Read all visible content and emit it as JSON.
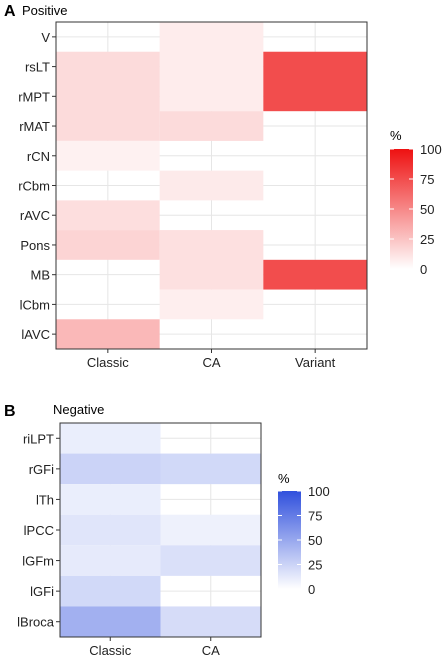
{
  "panels": [
    {
      "panel_label": "A",
      "chart_data": {
        "type": "heatmap",
        "title": "Positive",
        "xlabel": "",
        "ylabel": "",
        "categories": [
          "Classic",
          "CA",
          "Variant"
        ],
        "rows": [
          "V",
          "rsLT",
          "rMPT",
          "rMAT",
          "rCN",
          "rCbm",
          "rAVC",
          "Pons",
          "MB",
          "lCbm",
          "lAVC"
        ],
        "cells": [
          {
            "x": "CA",
            "y_from": "V",
            "y_to": "rMPT",
            "value": 8
          },
          {
            "x": "Classic",
            "y_from": "rsLT",
            "y_to": "rMAT",
            "value": 15
          },
          {
            "x": "CA",
            "y_from": "rMAT",
            "y_to": "rMAT",
            "value": 15
          },
          {
            "x": "Variant",
            "y_from": "rsLT",
            "y_to": "rMPT",
            "value": 75
          },
          {
            "x": "Classic",
            "y_from": "rCN",
            "y_to": "rCN",
            "value": 6
          },
          {
            "x": "CA",
            "y_from": "rCbm",
            "y_to": "rCbm",
            "value": 9
          },
          {
            "x": "Classic",
            "y_from": "rAVC",
            "y_to": "rAVC",
            "value": 14
          },
          {
            "x": "Classic",
            "y_from": "Pons",
            "y_to": "Pons",
            "value": 18
          },
          {
            "x": "CA",
            "y_from": "Pons",
            "y_to": "MB",
            "value": 13
          },
          {
            "x": "Variant",
            "y_from": "MB",
            "y_to": "MB",
            "value": 75
          },
          {
            "x": "CA",
            "y_from": "lCbm",
            "y_to": "lCbm",
            "value": 7
          },
          {
            "x": "Classic",
            "y_from": "lAVC",
            "y_to": "lAVC",
            "value": 30
          }
        ],
        "legend": {
          "title": "%",
          "ticks": [
            100,
            75,
            50,
            25,
            0
          ],
          "low_color": "#ffffff",
          "high_color": "#ee1111",
          "position": "right"
        },
        "grid": true
      }
    },
    {
      "panel_label": "B",
      "chart_data": {
        "type": "heatmap",
        "title": "Negative",
        "xlabel": "",
        "ylabel": "",
        "categories": [
          "Classic",
          "CA"
        ],
        "rows": [
          "riLPT",
          "rGFi",
          "lTh",
          "lPCC",
          "lGFm",
          "lGFi",
          "lBroca"
        ],
        "cells": [
          {
            "x": "Classic",
            "y_from": "riLPT",
            "y_to": "riLPT",
            "value": 10
          },
          {
            "x": "Classic",
            "y_from": "rGFi",
            "y_to": "rGFi",
            "value": 25
          },
          {
            "x": "CA",
            "y_from": "rGFi",
            "y_to": "rGFi",
            "value": 22
          },
          {
            "x": "Classic",
            "y_from": "lTh",
            "y_to": "lTh",
            "value": 10
          },
          {
            "x": "Classic",
            "y_from": "lPCC",
            "y_to": "lPCC",
            "value": 15
          },
          {
            "x": "CA",
            "y_from": "lPCC",
            "y_to": "lPCC",
            "value": 8
          },
          {
            "x": "Classic",
            "y_from": "lGFm",
            "y_to": "lGFm",
            "value": 12
          },
          {
            "x": "CA",
            "y_from": "lGFm",
            "y_to": "lGFm",
            "value": 18
          },
          {
            "x": "Classic",
            "y_from": "lGFi",
            "y_to": "lGFi",
            "value": 22
          },
          {
            "x": "Classic",
            "y_from": "lBroca",
            "y_to": "lBroca",
            "value": 45
          },
          {
            "x": "CA",
            "y_from": "lBroca",
            "y_to": "lBroca",
            "value": 20
          }
        ],
        "legend": {
          "title": "%",
          "ticks": [
            100,
            75,
            50,
            25,
            0
          ],
          "low_color": "#ffffff",
          "high_color": "#3050dd",
          "position": "right"
        },
        "grid": true
      }
    }
  ]
}
